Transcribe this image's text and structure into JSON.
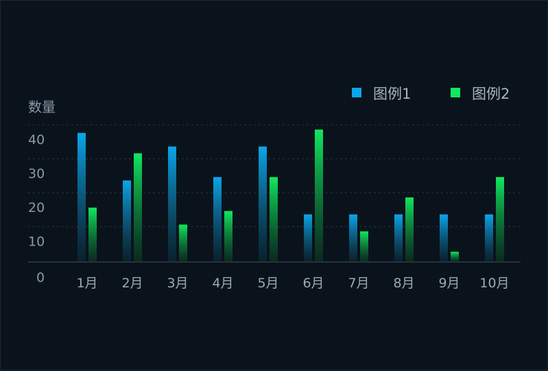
{
  "chart_data": {
    "type": "bar",
    "ylabel": "数量",
    "ylim": [
      0,
      40
    ],
    "yticks": [
      "0",
      "10",
      "20",
      "30",
      "40"
    ],
    "categories": [
      "1月",
      "2月",
      "3月",
      "4月",
      "5月",
      "6月",
      "7月",
      "8月",
      "9月",
      "10月"
    ],
    "series": [
      {
        "name": "图例1",
        "color": "#0ba6ea",
        "values": [
          37,
          23,
          33,
          24,
          33,
          13,
          13,
          13,
          13,
          13
        ]
      },
      {
        "name": "图例2",
        "color": "#10e860",
        "values": [
          15,
          31,
          10,
          14,
          24,
          38,
          8,
          18,
          2,
          24
        ]
      }
    ],
    "legend_position": "top-right",
    "grid": true
  }
}
